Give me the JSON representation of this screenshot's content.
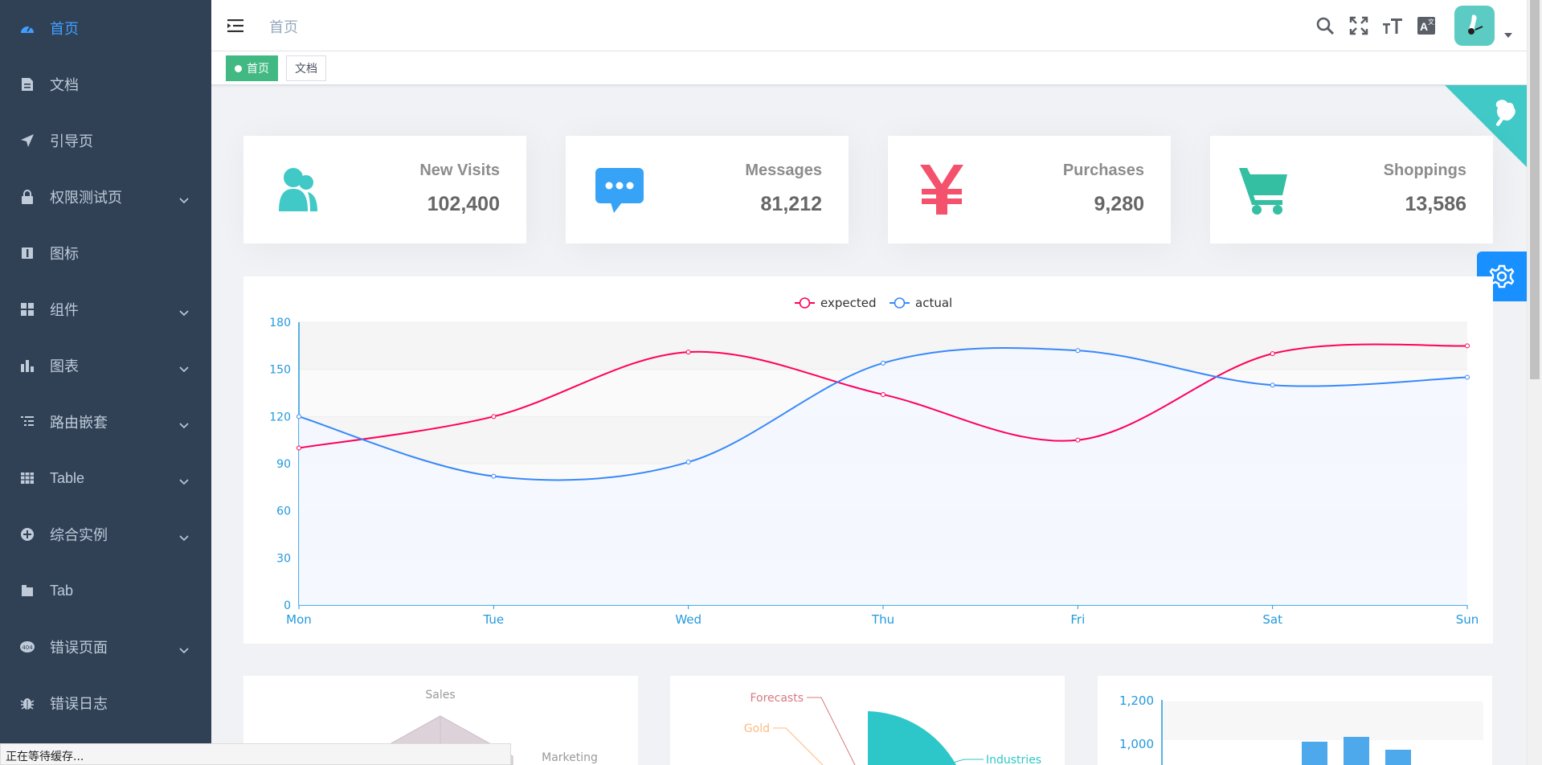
{
  "sidebar": {
    "items": [
      {
        "label": "首页",
        "icon": "dashboard-icon",
        "active": true,
        "has_children": false
      },
      {
        "label": "文档",
        "icon": "document-icon",
        "active": false,
        "has_children": false
      },
      {
        "label": "引导页",
        "icon": "guide-icon",
        "active": false,
        "has_children": false
      },
      {
        "label": "权限测试页",
        "icon": "lock-icon",
        "active": false,
        "has_children": true
      },
      {
        "label": "图标",
        "icon": "icon-icon",
        "active": false,
        "has_children": false
      },
      {
        "label": "组件",
        "icon": "component-icon",
        "active": false,
        "has_children": true
      },
      {
        "label": "图表",
        "icon": "chart-icon",
        "active": false,
        "has_children": true
      },
      {
        "label": "路由嵌套",
        "icon": "nested-icon",
        "active": false,
        "has_children": true
      },
      {
        "label": "Table",
        "icon": "table-icon",
        "active": false,
        "has_children": true
      },
      {
        "label": "综合实例",
        "icon": "example-icon",
        "active": false,
        "has_children": true
      },
      {
        "label": "Tab",
        "icon": "tab-icon",
        "active": false,
        "has_children": false
      },
      {
        "label": "错误页面",
        "icon": "error-page-icon",
        "active": false,
        "has_children": true
      },
      {
        "label": "错误日志",
        "icon": "bug-icon",
        "active": false,
        "has_children": false
      }
    ]
  },
  "navbar": {
    "breadcrumb": "首页",
    "icons": [
      "search-icon",
      "fullscreen-icon",
      "font-size-icon",
      "language-icon"
    ]
  },
  "tags": {
    "items": [
      {
        "label": "首页",
        "active": true
      },
      {
        "label": "文档",
        "active": false
      }
    ]
  },
  "cards": [
    {
      "title": "New Visits",
      "value": "102,400",
      "icon": "peoples-icon",
      "color": "#40c9c6"
    },
    {
      "title": "Messages",
      "value": "81,212",
      "icon": "message-icon",
      "color": "#36a3f7"
    },
    {
      "title": "Purchases",
      "value": "9,280",
      "icon": "money-icon",
      "color": "#f4516c"
    },
    {
      "title": "Shoppings",
      "value": "13,586",
      "icon": "shopping-icon",
      "color": "#34bfa3"
    }
  ],
  "colors": {
    "sidebar_bg": "#304156",
    "active_menu": "#409eff",
    "tag_active": "#42b983",
    "expected": "#ff005a",
    "actual": "#3888fa",
    "github_corner": "#40c9c6",
    "settings": "#1890ff"
  },
  "chart_data": [
    {
      "type": "line",
      "title": "",
      "categories": [
        "Mon",
        "Tue",
        "Wed",
        "Thu",
        "Fri",
        "Sat",
        "Sun"
      ],
      "series": [
        {
          "name": "expected",
          "values": [
            100,
            120,
            161,
            134,
            105,
            160,
            165
          ]
        },
        {
          "name": "actual",
          "values": [
            120,
            82,
            91,
            154,
            162,
            140,
            145
          ]
        }
      ],
      "ylim": [
        0,
        180
      ],
      "yticks": [
        0,
        30,
        60,
        90,
        120,
        150,
        180
      ],
      "grid": true,
      "legend": "top-center"
    },
    {
      "type": "radar",
      "indicators_visible": [
        "Sales",
        "Marketing"
      ]
    },
    {
      "type": "pie",
      "labels_visible": [
        "Forecasts",
        "Gold",
        "Industries"
      ]
    },
    {
      "type": "bar",
      "yticks_visible": [
        "1,200",
        "1,000"
      ]
    }
  ],
  "status_bar": "正在等待缓存..."
}
